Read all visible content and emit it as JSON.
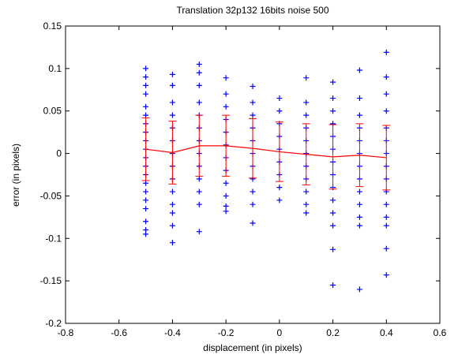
{
  "chart_data": {
    "type": "scatter",
    "title": "Translation 32p132 16bits noise 500",
    "xlabel": "displacement (in pixels)",
    "ylabel": "error (in pixels)",
    "xlim": [
      -0.8,
      0.6
    ],
    "ylim": [
      -0.2,
      0.15
    ],
    "xticks": [
      -0.8,
      -0.6,
      -0.4,
      -0.2,
      0,
      0.2,
      0.4,
      0.6
    ],
    "yticks": [
      -0.2,
      -0.15,
      -0.1,
      -0.05,
      0,
      0.05,
      0.1,
      0.15
    ],
    "marker_color": "#0000ff",
    "columns": [
      {
        "x": -0.5,
        "values": [
          0.1,
          0.09,
          0.08,
          0.07,
          0.055,
          0.045,
          0.035,
          0.025,
          0.015,
          0.005,
          -0.005,
          -0.015,
          -0.025,
          -0.035,
          -0.045,
          -0.055,
          -0.065,
          -0.08,
          -0.09,
          -0.095
        ]
      },
      {
        "x": -0.4,
        "values": [
          0.093,
          0.08,
          0.06,
          0.045,
          0.03,
          0.015,
          0,
          -0.015,
          -0.03,
          -0.045,
          -0.06,
          -0.07,
          -0.085,
          -0.105
        ]
      },
      {
        "x": -0.3,
        "values": [
          0.105,
          0.095,
          0.08,
          0.06,
          0.045,
          0.03,
          0.015,
          0,
          -0.015,
          -0.03,
          -0.045,
          -0.06,
          -0.092
        ]
      },
      {
        "x": -0.2,
        "values": [
          0.089,
          0.07,
          0.055,
          0.04,
          0.025,
          0.01,
          -0.005,
          -0.02,
          -0.035,
          -0.05,
          -0.062,
          -0.068
        ]
      },
      {
        "x": -0.1,
        "values": [
          0.079,
          0.06,
          0.045,
          0.03,
          0.015,
          0,
          -0.015,
          -0.03,
          -0.045,
          -0.06,
          -0.082
        ]
      },
      {
        "x": 0,
        "values": [
          0.065,
          0.05,
          0.035,
          0.02,
          0.005,
          -0.01,
          -0.025,
          -0.04,
          -0.055
        ]
      },
      {
        "x": 0.1,
        "values": [
          0.089,
          0.06,
          0.045,
          0.03,
          0.015,
          0,
          -0.015,
          -0.03,
          -0.045,
          -0.06,
          -0.07
        ]
      },
      {
        "x": 0.2,
        "values": [
          0.084,
          0.065,
          0.05,
          0.035,
          0.02,
          0.005,
          -0.01,
          -0.025,
          -0.04,
          -0.055,
          -0.07,
          -0.085,
          -0.113,
          -0.155
        ]
      },
      {
        "x": 0.3,
        "values": [
          0.098,
          0.065,
          0.045,
          0.03,
          0.015,
          0,
          -0.015,
          -0.03,
          -0.045,
          -0.06,
          -0.075,
          -0.085,
          -0.16
        ]
      },
      {
        "x": 0.4,
        "values": [
          0.119,
          0.09,
          0.07,
          0.05,
          0.03,
          0.015,
          0,
          -0.015,
          -0.03,
          -0.045,
          -0.06,
          -0.075,
          -0.085,
          -0.112,
          -0.143
        ]
      }
    ],
    "mean_line": {
      "color": "#ff0000",
      "x": [
        -0.5,
        -0.4,
        -0.3,
        -0.2,
        -0.1,
        0,
        0.1,
        0.2,
        0.3,
        0.4
      ],
      "values": [
        0.005,
        0.001,
        0.009,
        0.009,
        0.006,
        0.002,
        -0.001,
        -0.004,
        -0.002,
        -0.005
      ],
      "errors": [
        0.037,
        0.037,
        0.036,
        0.036,
        0.035,
        0.035,
        0.036,
        0.038,
        0.037,
        0.038
      ]
    }
  }
}
